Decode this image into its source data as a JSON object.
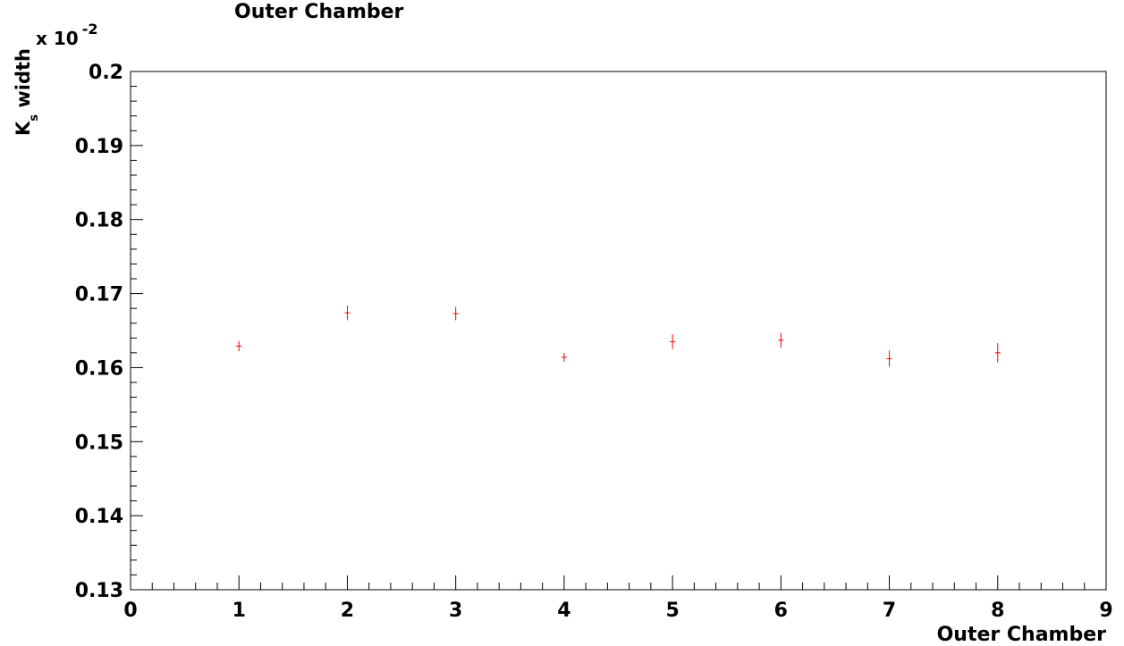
{
  "chart_data": {
    "type": "scatter",
    "title": "Outer Chamber",
    "xlabel": "Outer Chamber",
    "ylabel": "K_s width",
    "ylabel_main": "K",
    "ylabel_sub": "s",
    "ylabel_rest": " width",
    "y_multiplier": {
      "prefix": "x 10",
      "exponent": "-2"
    },
    "xlim": [
      0,
      9
    ],
    "ylim": [
      0.13,
      0.2
    ],
    "x_ticks": [
      "0",
      "1",
      "2",
      "3",
      "4",
      "5",
      "6",
      "7",
      "8",
      "9"
    ],
    "y_ticks": [
      "0.13",
      "0.14",
      "0.15",
      "0.16",
      "0.17",
      "0.18",
      "0.19",
      "0.2"
    ],
    "grid": false,
    "marker_color": "#ff0000",
    "points": [
      {
        "x": 1,
        "y": 0.1629,
        "yerr": 0.0007
      },
      {
        "x": 2,
        "y": 0.1674,
        "yerr": 0.001
      },
      {
        "x": 3,
        "y": 0.1673,
        "yerr": 0.0009
      },
      {
        "x": 4,
        "y": 0.1614,
        "yerr": 0.0006
      },
      {
        "x": 5,
        "y": 0.1635,
        "yerr": 0.001
      },
      {
        "x": 6,
        "y": 0.1637,
        "yerr": 0.001
      },
      {
        "x": 7,
        "y": 0.1612,
        "yerr": 0.0011
      },
      {
        "x": 8,
        "y": 0.162,
        "yerr": 0.0013
      }
    ]
  }
}
